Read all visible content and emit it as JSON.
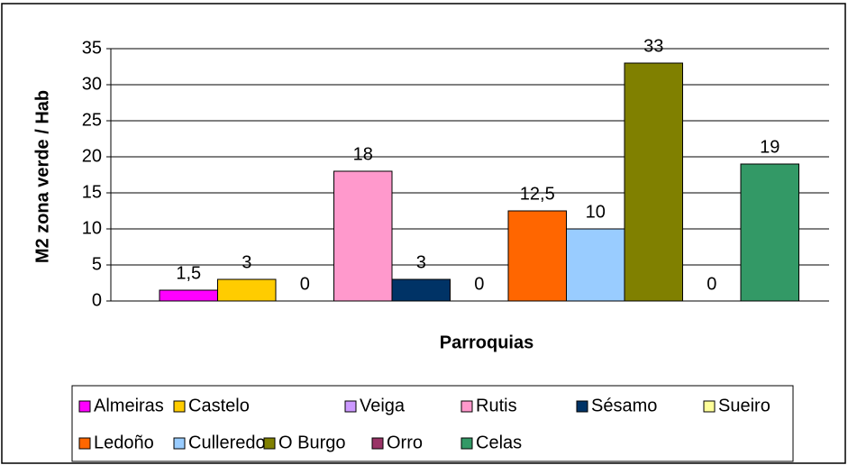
{
  "chart_data": {
    "type": "bar",
    "x_label": "Parroquias",
    "y_label": "M2 zona verde / Hab",
    "ylim": [
      0,
      35
    ],
    "yticks": [
      0,
      5,
      10,
      15,
      20,
      25,
      30,
      35
    ],
    "grid": true,
    "legend": "bottom",
    "series": [
      {
        "name": "Almeiras",
        "color": "#ff00ff",
        "values": [
          1.5
        ],
        "value_labels": [
          "1,5"
        ]
      },
      {
        "name": "Castelo",
        "color": "#ffcc00",
        "values": [
          3
        ]
      },
      {
        "name": "Veiga",
        "color": "#cc99ff",
        "values": [
          0
        ]
      },
      {
        "name": "Rutis",
        "color": "#ff99cc",
        "values": [
          18
        ]
      },
      {
        "name": "Sésamo",
        "color": "#003366",
        "values": [
          3
        ]
      },
      {
        "name": "Sueiro",
        "color": "#ffff99",
        "values": [
          0
        ]
      },
      {
        "name": "Ledoño",
        "color": "#ff6600",
        "values": [
          12.5
        ],
        "value_labels": [
          "12,5"
        ]
      },
      {
        "name": "Culleredo",
        "color": "#99ccff",
        "values": [
          10
        ]
      },
      {
        "name": "O Burgo",
        "color": "#808000",
        "values": [
          33
        ]
      },
      {
        "name": "Orro",
        "color": "#993366",
        "values": [
          0
        ]
      },
      {
        "name": "Celas",
        "color": "#339966",
        "values": [
          19
        ]
      }
    ]
  }
}
